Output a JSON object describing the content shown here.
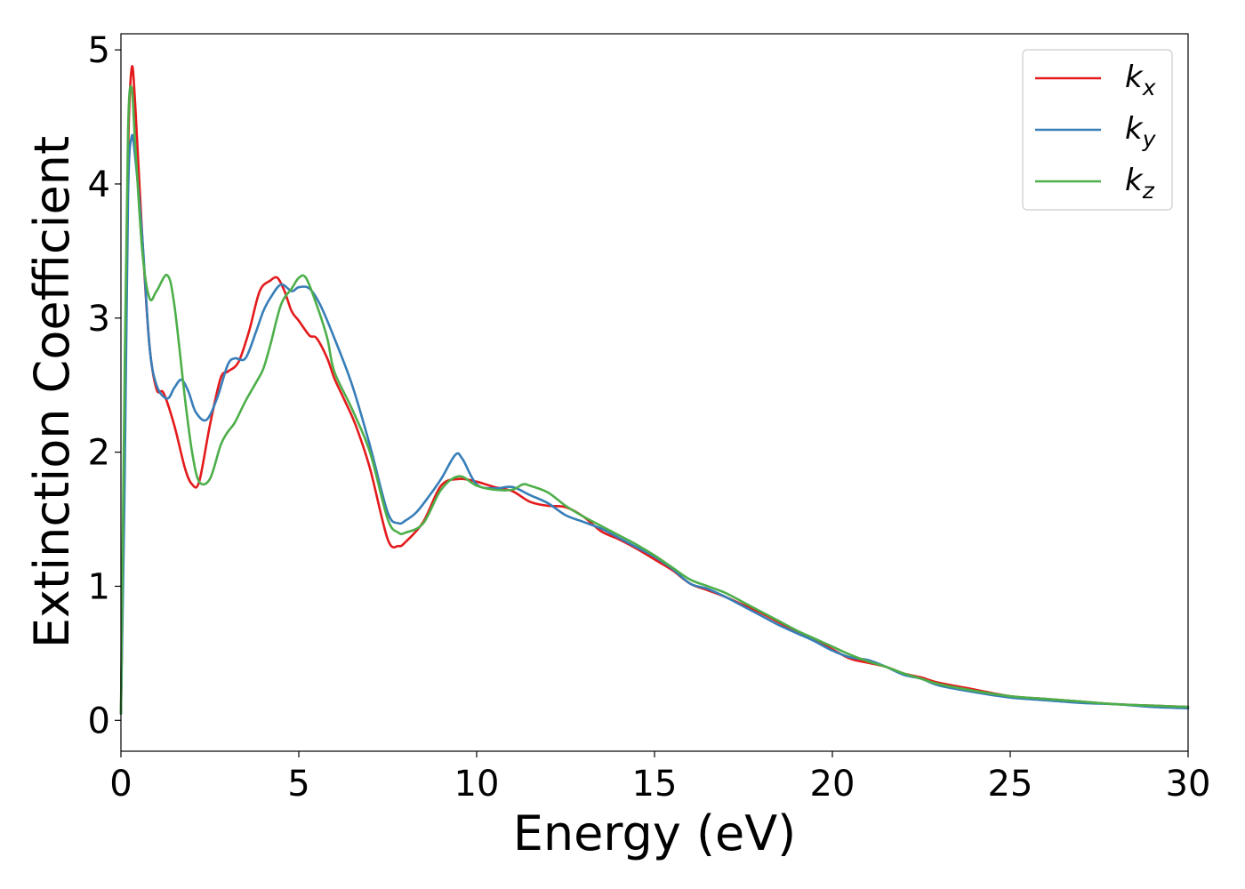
{
  "chart_data": {
    "type": "line",
    "title": "",
    "xlabel": "Energy (eV)",
    "ylabel": "Extinction Coefficient",
    "xlim": [
      0,
      30
    ],
    "ylim": [
      -0.23,
      5.12
    ],
    "xticks": [
      0,
      5,
      10,
      15,
      20,
      25,
      30
    ],
    "yticks": [
      0,
      1,
      2,
      3,
      4,
      5
    ],
    "grid": false,
    "legend_position": "top-right",
    "series": [
      {
        "name": "k_x",
        "label_main": "k",
        "label_sub": "x",
        "color": "#e41a1c",
        "x": [
          0,
          0.1,
          0.2,
          0.3,
          0.4,
          0.6,
          0.8,
          1.0,
          1.2,
          1.5,
          1.8,
          2.0,
          2.2,
          2.5,
          2.8,
          3.0,
          3.3,
          3.6,
          3.9,
          4.2,
          4.4,
          4.6,
          4.8,
          5.0,
          5.3,
          5.5,
          5.8,
          6.0,
          6.3,
          6.6,
          7.0,
          7.5,
          7.8,
          8.0,
          8.5,
          9.0,
          9.5,
          10.0,
          10.5,
          11.0,
          11.5,
          12.0,
          12.5,
          13.0,
          13.5,
          14.0,
          14.5,
          15.0,
          15.5,
          16.0,
          16.5,
          17.0,
          17.5,
          18.0,
          18.5,
          19.0,
          19.5,
          20.0,
          20.5,
          21.0,
          21.5,
          22.0,
          22.5,
          23.0,
          24.0,
          25.0,
          26.0,
          27.0,
          28.0,
          29.0,
          30.0
        ],
        "y": [
          0.05,
          2.0,
          4.2,
          4.86,
          4.6,
          3.6,
          2.8,
          2.47,
          2.44,
          2.2,
          1.88,
          1.76,
          1.78,
          2.2,
          2.55,
          2.6,
          2.67,
          2.9,
          3.2,
          3.28,
          3.3,
          3.2,
          3.05,
          2.98,
          2.87,
          2.85,
          2.7,
          2.55,
          2.38,
          2.2,
          1.88,
          1.35,
          1.3,
          1.33,
          1.48,
          1.75,
          1.8,
          1.78,
          1.74,
          1.71,
          1.63,
          1.6,
          1.59,
          1.52,
          1.41,
          1.35,
          1.28,
          1.2,
          1.12,
          1.02,
          0.97,
          0.92,
          0.86,
          0.8,
          0.73,
          0.66,
          0.6,
          0.53,
          0.46,
          0.43,
          0.4,
          0.35,
          0.32,
          0.28,
          0.23,
          0.18,
          0.16,
          0.14,
          0.12,
          0.11,
          0.1
        ]
      },
      {
        "name": "k_y",
        "label_main": "k",
        "label_sub": "y",
        "color": "#377eb8",
        "x": [
          0,
          0.1,
          0.2,
          0.3,
          0.4,
          0.6,
          0.8,
          1.0,
          1.3,
          1.5,
          1.7,
          1.9,
          2.1,
          2.4,
          2.7,
          3.0,
          3.2,
          3.5,
          3.8,
          4.0,
          4.2,
          4.5,
          4.8,
          5.0,
          5.3,
          5.6,
          6.0,
          6.5,
          7.0,
          7.5,
          7.8,
          8.0,
          8.3,
          8.6,
          9.0,
          9.4,
          9.6,
          10.0,
          10.5,
          11.0,
          11.5,
          12.0,
          12.5,
          13.0,
          13.5,
          14.0,
          14.5,
          15.0,
          15.5,
          16.0,
          16.5,
          17.0,
          17.5,
          18.0,
          18.5,
          19.0,
          19.5,
          20.0,
          20.5,
          21.0,
          21.5,
          22.0,
          22.5,
          23.0,
          24.0,
          25.0,
          26.0,
          27.0,
          28.0,
          29.0,
          30.0
        ],
        "y": [
          0.05,
          1.7,
          3.9,
          4.35,
          4.2,
          3.6,
          2.8,
          2.5,
          2.4,
          2.48,
          2.54,
          2.45,
          2.3,
          2.24,
          2.4,
          2.65,
          2.7,
          2.7,
          2.9,
          3.05,
          3.15,
          3.25,
          3.2,
          3.23,
          3.22,
          3.1,
          2.85,
          2.5,
          2.05,
          1.55,
          1.47,
          1.49,
          1.55,
          1.65,
          1.8,
          1.98,
          1.95,
          1.76,
          1.73,
          1.74,
          1.68,
          1.62,
          1.53,
          1.48,
          1.43,
          1.36,
          1.29,
          1.22,
          1.13,
          1.02,
          0.98,
          0.92,
          0.85,
          0.78,
          0.71,
          0.65,
          0.59,
          0.52,
          0.47,
          0.45,
          0.4,
          0.34,
          0.31,
          0.26,
          0.21,
          0.17,
          0.15,
          0.13,
          0.12,
          0.1,
          0.09
        ]
      },
      {
        "name": "k_z",
        "label_main": "k",
        "label_sub": "z",
        "color": "#4daf4a",
        "x": [
          0,
          0.1,
          0.2,
          0.3,
          0.4,
          0.6,
          0.8,
          1.0,
          1.3,
          1.5,
          1.8,
          2.0,
          2.2,
          2.5,
          2.8,
          3.0,
          3.2,
          3.5,
          3.8,
          4.0,
          4.2,
          4.5,
          4.8,
          5.0,
          5.2,
          5.5,
          5.8,
          6.0,
          6.5,
          7.0,
          7.5,
          7.8,
          8.0,
          8.5,
          9.0,
          9.5,
          10.0,
          10.5,
          11.0,
          11.3,
          11.5,
          12.0,
          12.5,
          13.0,
          13.5,
          14.0,
          14.5,
          15.0,
          15.5,
          16.0,
          16.5,
          17.0,
          17.5,
          18.0,
          18.5,
          19.0,
          19.5,
          20.0,
          20.5,
          21.0,
          21.5,
          22.0,
          22.5,
          23.0,
          24.0,
          25.0,
          26.0,
          27.0,
          28.0,
          29.0,
          30.0
        ],
        "y": [
          0.05,
          2.5,
          4.4,
          4.72,
          4.3,
          3.5,
          3.15,
          3.2,
          3.32,
          3.1,
          2.4,
          2.0,
          1.78,
          1.8,
          2.05,
          2.15,
          2.22,
          2.38,
          2.52,
          2.62,
          2.8,
          3.1,
          3.22,
          3.3,
          3.3,
          3.1,
          2.85,
          2.6,
          2.32,
          2.0,
          1.5,
          1.4,
          1.4,
          1.47,
          1.72,
          1.82,
          1.75,
          1.72,
          1.72,
          1.76,
          1.75,
          1.7,
          1.6,
          1.52,
          1.45,
          1.38,
          1.31,
          1.23,
          1.14,
          1.05,
          1.0,
          0.95,
          0.88,
          0.81,
          0.74,
          0.67,
          0.61,
          0.55,
          0.49,
          0.44,
          0.4,
          0.35,
          0.31,
          0.27,
          0.22,
          0.18,
          0.16,
          0.14,
          0.12,
          0.11,
          0.1
        ]
      }
    ]
  }
}
